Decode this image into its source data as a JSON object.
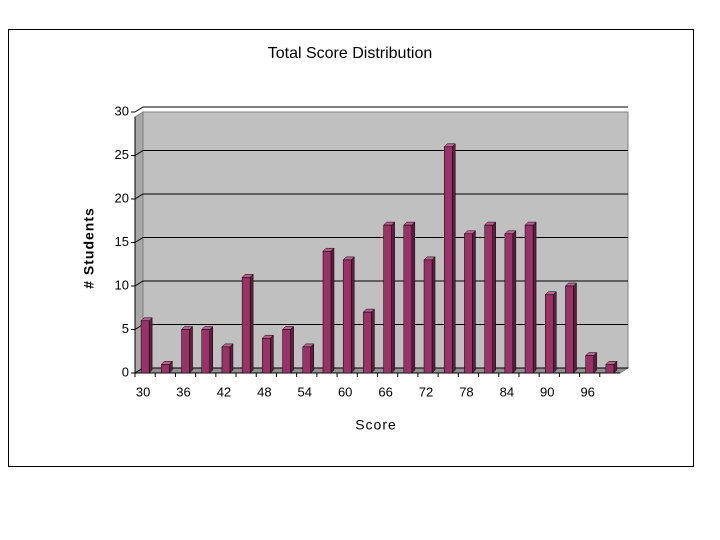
{
  "chart_data": {
    "type": "bar3d",
    "title": "Total Score Distribution",
    "x_label": "Score",
    "y_label": "# Students",
    "categories": [
      30,
      null,
      36,
      null,
      42,
      null,
      48,
      null,
      54,
      null,
      60,
      null,
      66,
      null,
      72,
      null,
      78,
      null,
      84,
      null,
      90,
      null,
      96,
      null
    ],
    "values": [
      6,
      1,
      5,
      5,
      3,
      11,
      4,
      5,
      3,
      14,
      13,
      7,
      17,
      17,
      13,
      26,
      16,
      17,
      16,
      17,
      9,
      10,
      2,
      1
    ],
    "color": "#993366",
    "ylim": [
      0,
      30
    ],
    "yticks": [
      0,
      5,
      10,
      15,
      20,
      25,
      30
    ],
    "grid": true
  }
}
